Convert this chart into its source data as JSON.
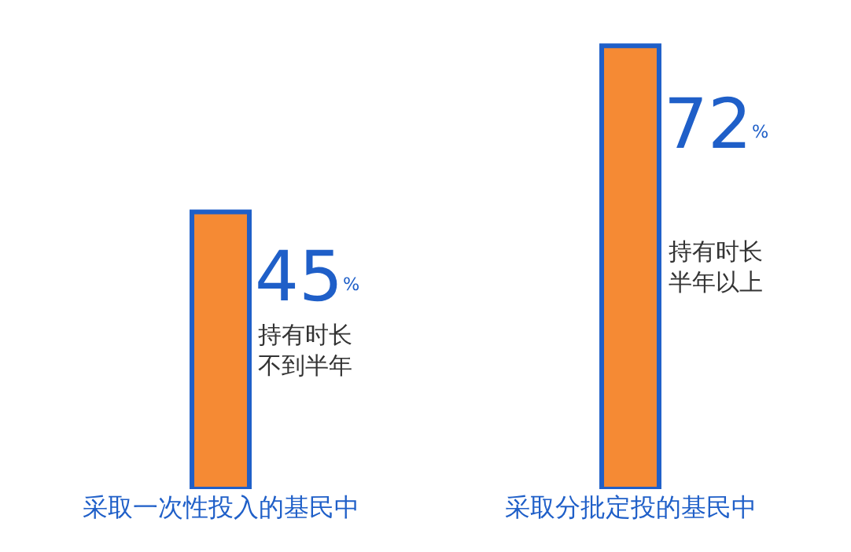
{
  "chart_data": {
    "type": "bar",
    "categories": [
      "采取一次性投入的基民中",
      "采取分批定投的基民中"
    ],
    "values": [
      45,
      72
    ],
    "colors": [
      "#f58a34",
      "#f58a34"
    ],
    "value_labels": [
      "45$^{%}$",
      "72$^{%}$"
    ],
    "annotations": [
      "持有时长不到半年",
      "持有时长半年以上"
    ],
    "legend": false
  }
}
